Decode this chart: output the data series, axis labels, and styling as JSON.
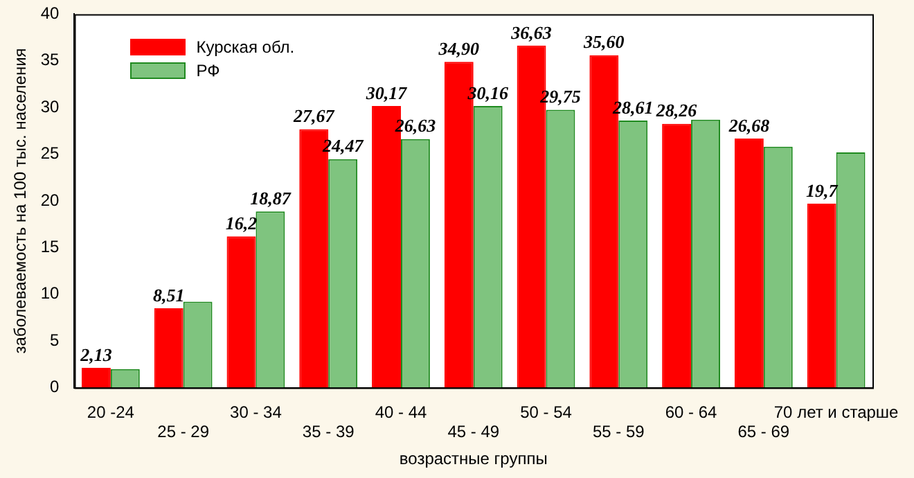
{
  "chart_data": {
    "type": "bar",
    "xlabel": "возрастные группы",
    "ylabel": "заболеваемость на 100 тыс. населения",
    "categories": [
      "20 -24",
      "25 - 29",
      "30 - 34",
      "35 - 39",
      "40 - 44",
      "45 - 49",
      "50 - 54",
      "55 - 59",
      "60 - 64",
      "65 - 69",
      "70 лет и старше"
    ],
    "series": [
      {
        "name": "Курская обл.",
        "color": "#ff0000",
        "values": [
          2.13,
          8.51,
          16.2,
          27.67,
          30.17,
          34.9,
          36.63,
          35.6,
          28.26,
          26.68,
          19.7
        ],
        "value_labels": [
          "2,13",
          "8,51",
          "16,2",
          "27,67",
          "30,17",
          "34,90",
          "36,63",
          "35,60",
          "28,26",
          "26,68",
          "19,7"
        ]
      },
      {
        "name": "РФ",
        "color": "#7fc47f",
        "values": [
          2.0,
          9.2,
          18.87,
          24.47,
          26.63,
          30.16,
          29.75,
          28.61,
          28.7,
          25.8,
          25.2
        ],
        "value_labels": [
          null,
          null,
          "18,87",
          "24,47",
          "26,63",
          "30,16",
          "29,75",
          "28,61",
          null,
          null,
          null
        ]
      }
    ],
    "ylim": [
      0,
      40
    ],
    "yticks": [
      0,
      5,
      10,
      15,
      20,
      25,
      30,
      35,
      40
    ],
    "grid": false,
    "legend": "top left"
  }
}
